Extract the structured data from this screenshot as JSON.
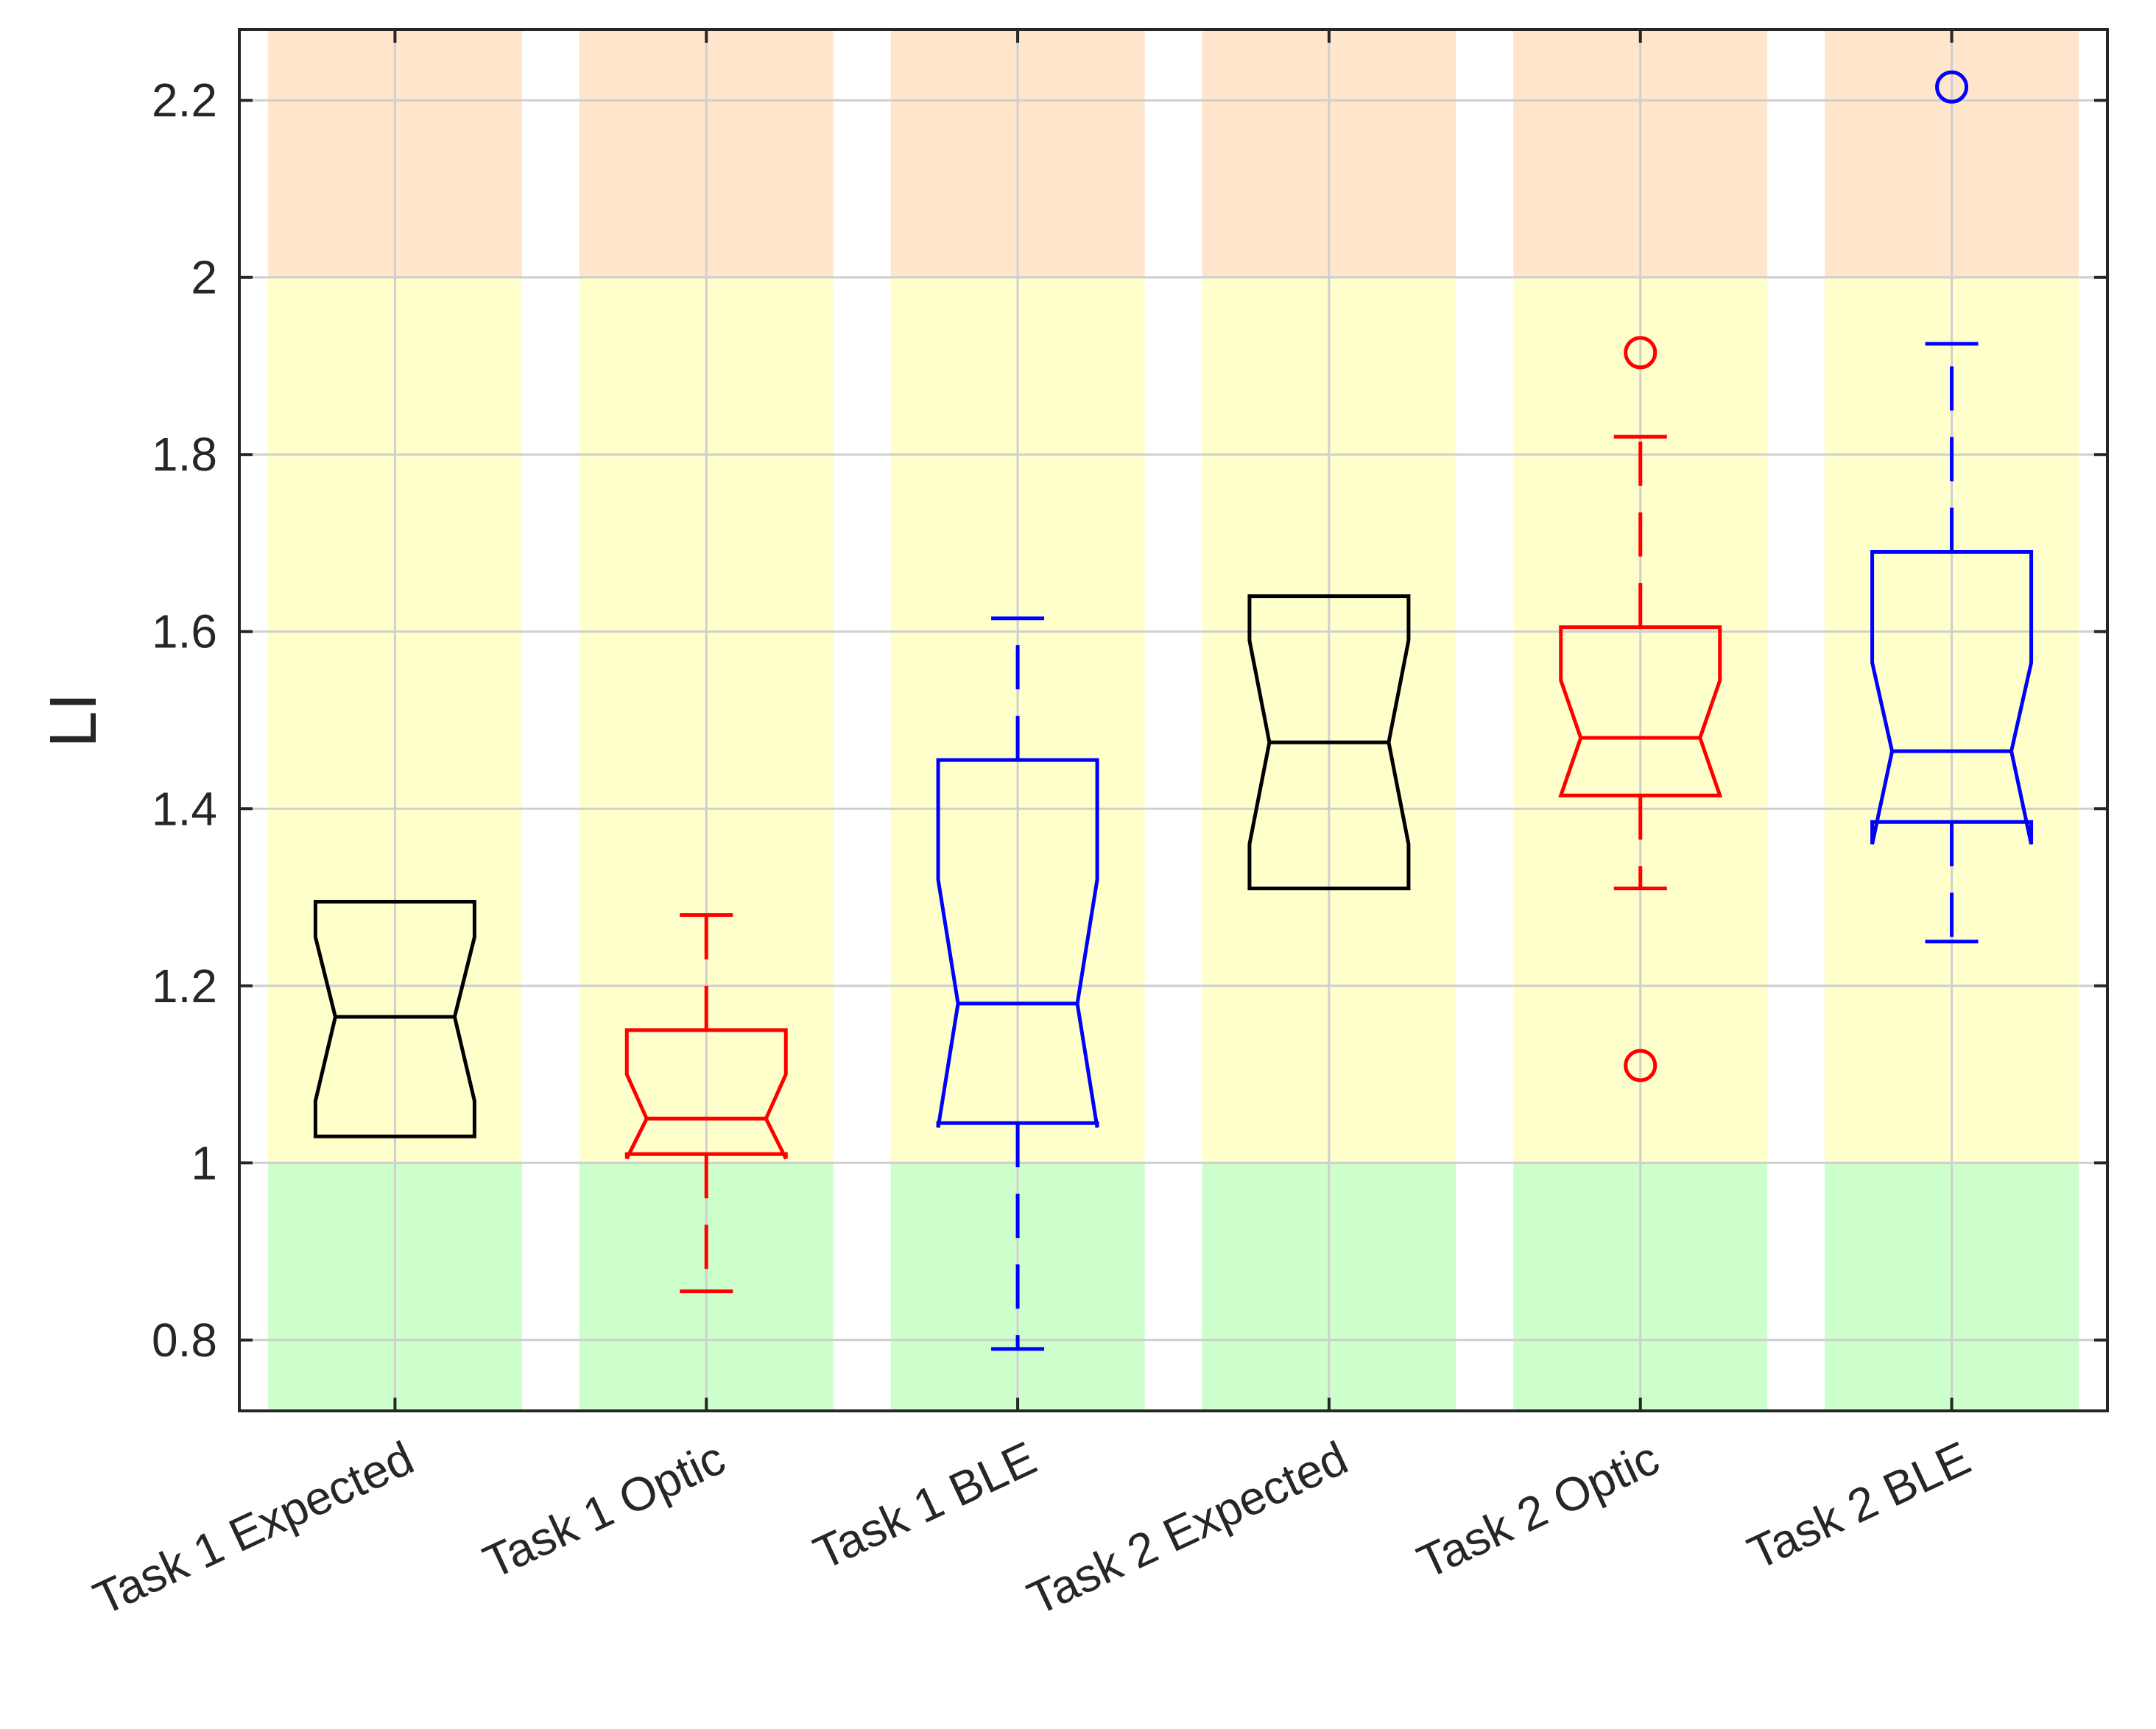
{
  "chart_data": {
    "type": "boxplot",
    "notched": true,
    "ylabel": "LI",
    "xlabel": "",
    "title": "",
    "ylim": [
      0.72,
      2.28
    ],
    "yticks": [
      "0.8",
      "1",
      "1.2",
      "1.4",
      "1.6",
      "1.8",
      "2",
      "2.2"
    ],
    "grid": true,
    "background_bands": [
      {
        "from": 0.72,
        "to": 1.0,
        "color": "#ccffcc"
      },
      {
        "from": 1.0,
        "to": 2.0,
        "color": "#ffffcc"
      },
      {
        "from": 2.0,
        "to": 2.28,
        "color": "#ffe5cc"
      }
    ],
    "categories": [
      "Task 1  Expected",
      "Task 1 Optic",
      "Task 1  BLE",
      "Task 2  Expected",
      "Task 2 Optic",
      "Task 2  BLE"
    ],
    "boxes": [
      {
        "category": "Task 1  Expected",
        "color": "#000000",
        "q1": 1.03,
        "median": 1.165,
        "q3": 1.295,
        "notch_low": 1.07,
        "notch_high": 1.255,
        "whisker_low": null,
        "whisker_high": null,
        "outliers": []
      },
      {
        "category": "Task 1 Optic",
        "color": "#ff0000",
        "q1": 1.01,
        "median": 1.05,
        "q3": 1.15,
        "notch_low": 1.005,
        "notch_high": 1.1,
        "whisker_low": 0.855,
        "whisker_high": 1.28,
        "outliers": []
      },
      {
        "category": "Task 1  BLE",
        "color": "#0000ff",
        "q1": 1.045,
        "median": 1.18,
        "q3": 1.455,
        "notch_low": 1.04,
        "notch_high": 1.32,
        "whisker_low": 0.79,
        "whisker_high": 1.615,
        "outliers": []
      },
      {
        "category": "Task 2  Expected",
        "color": "#000000",
        "q1": 1.31,
        "median": 1.475,
        "q3": 1.64,
        "notch_low": 1.36,
        "notch_high": 1.59,
        "whisker_low": null,
        "whisker_high": null,
        "outliers": []
      },
      {
        "category": "Task 2 Optic",
        "color": "#ff0000",
        "q1": 1.415,
        "median": 1.48,
        "q3": 1.605,
        "notch_low": 1.415,
        "notch_high": 1.545,
        "whisker_low": 1.31,
        "whisker_high": 1.82,
        "outliers": [
          1.11,
          1.915
        ]
      },
      {
        "category": "Task 2  BLE",
        "color": "#0000ff",
        "q1": 1.385,
        "median": 1.465,
        "q3": 1.69,
        "notch_low": 1.36,
        "notch_high": 1.565,
        "whisker_low": 1.25,
        "whisker_high": 1.925,
        "outliers": [
          2.215
        ]
      }
    ]
  }
}
